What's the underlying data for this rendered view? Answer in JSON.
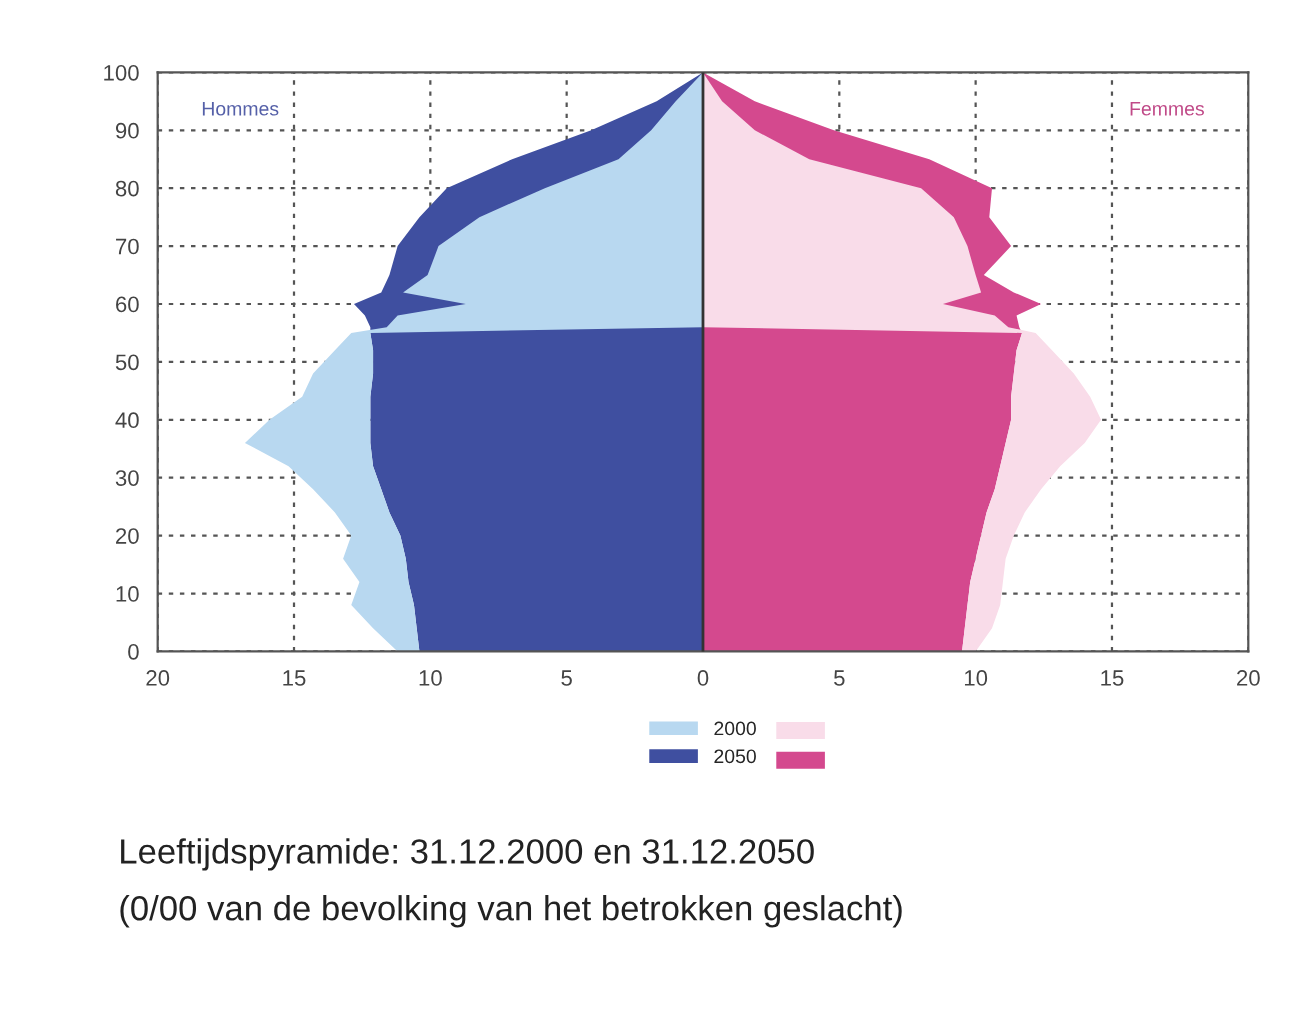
{
  "chart_data": {
    "type": "area",
    "orientation": "horizontal",
    "annotations": [
      "Hommes",
      "Femmes",
      "Leeftijdspyramide: 31.12.2000 en 31.12.2050",
      "(0/00 van de bevolking van het betrokken geslacht)"
    ],
    "x": [
      0,
      4,
      8,
      12,
      16,
      20,
      24,
      28,
      32,
      36,
      40,
      44,
      48,
      52,
      55,
      56,
      58,
      60,
      62,
      65,
      70,
      75,
      80,
      85,
      90,
      95,
      100
    ],
    "series": [
      {
        "name": "2000",
        "color": "#b8d8f0",
        "values": [
          -11.2,
          -12.1,
          -12.9,
          -12.6,
          -13.2,
          -12.9,
          -13.5,
          -14.3,
          -15.2,
          -16.8,
          -15.9,
          -14.7,
          -14.3,
          -13.5,
          -12.9,
          -11.6,
          -11.2,
          -8.7,
          -11.0,
          -10.1,
          -9.7,
          -8.2,
          -5.8,
          -3.1,
          -1.9,
          -1.0,
          0
        ]
      },
      {
        "name": "2050",
        "color": "#3f4fa0",
        "values": [
          -10.4,
          -10.5,
          -10.6,
          -10.8,
          -10.9,
          -11.1,
          -11.5,
          -11.8,
          -12.1,
          -12.2,
          -12.2,
          -12.2,
          -12.1,
          -12.1,
          -12.2,
          -12.2,
          -12.4,
          -12.8,
          -11.8,
          -11.5,
          -11.2,
          -10.4,
          -9.4,
          -7.0,
          -4.1,
          -1.7,
          0
        ]
      },
      {
        "color": "#f9dce9",
        "values": [
          10.0,
          10.6,
          10.9,
          11.0,
          11.1,
          11.4,
          11.8,
          12.4,
          13.1,
          14.0,
          14.6,
          14.2,
          13.6,
          12.8,
          12.2,
          11.2,
          10.7,
          8.8,
          10.2,
          10.0,
          9.7,
          9.2,
          8.0,
          3.9,
          1.9,
          0.7,
          0
        ]
      },
      {
        "color": "#d4498e",
        "values": [
          9.5,
          9.6,
          9.7,
          9.8,
          10.0,
          10.2,
          10.4,
          10.7,
          10.9,
          11.1,
          11.3,
          11.3,
          11.4,
          11.5,
          11.7,
          11.6,
          11.5,
          12.4,
          11.4,
          10.3,
          11.3,
          10.5,
          10.6,
          8.3,
          4.8,
          1.9,
          0
        ]
      }
    ],
    "xlim": [
      -20,
      20
    ],
    "xticks": [
      {
        "value": -20,
        "label": "20"
      },
      {
        "value": -15,
        "label": "15"
      },
      {
        "value": -10,
        "label": "10"
      },
      {
        "value": -5,
        "label": "5"
      },
      0,
      5,
      10,
      15,
      20
    ],
    "ylim": [
      0,
      100
    ],
    "yticks": [
      0,
      10,
      20,
      30,
      40,
      50,
      60,
      70,
      80,
      90,
      100
    ],
    "grid": true,
    "legend": "bottom"
  }
}
